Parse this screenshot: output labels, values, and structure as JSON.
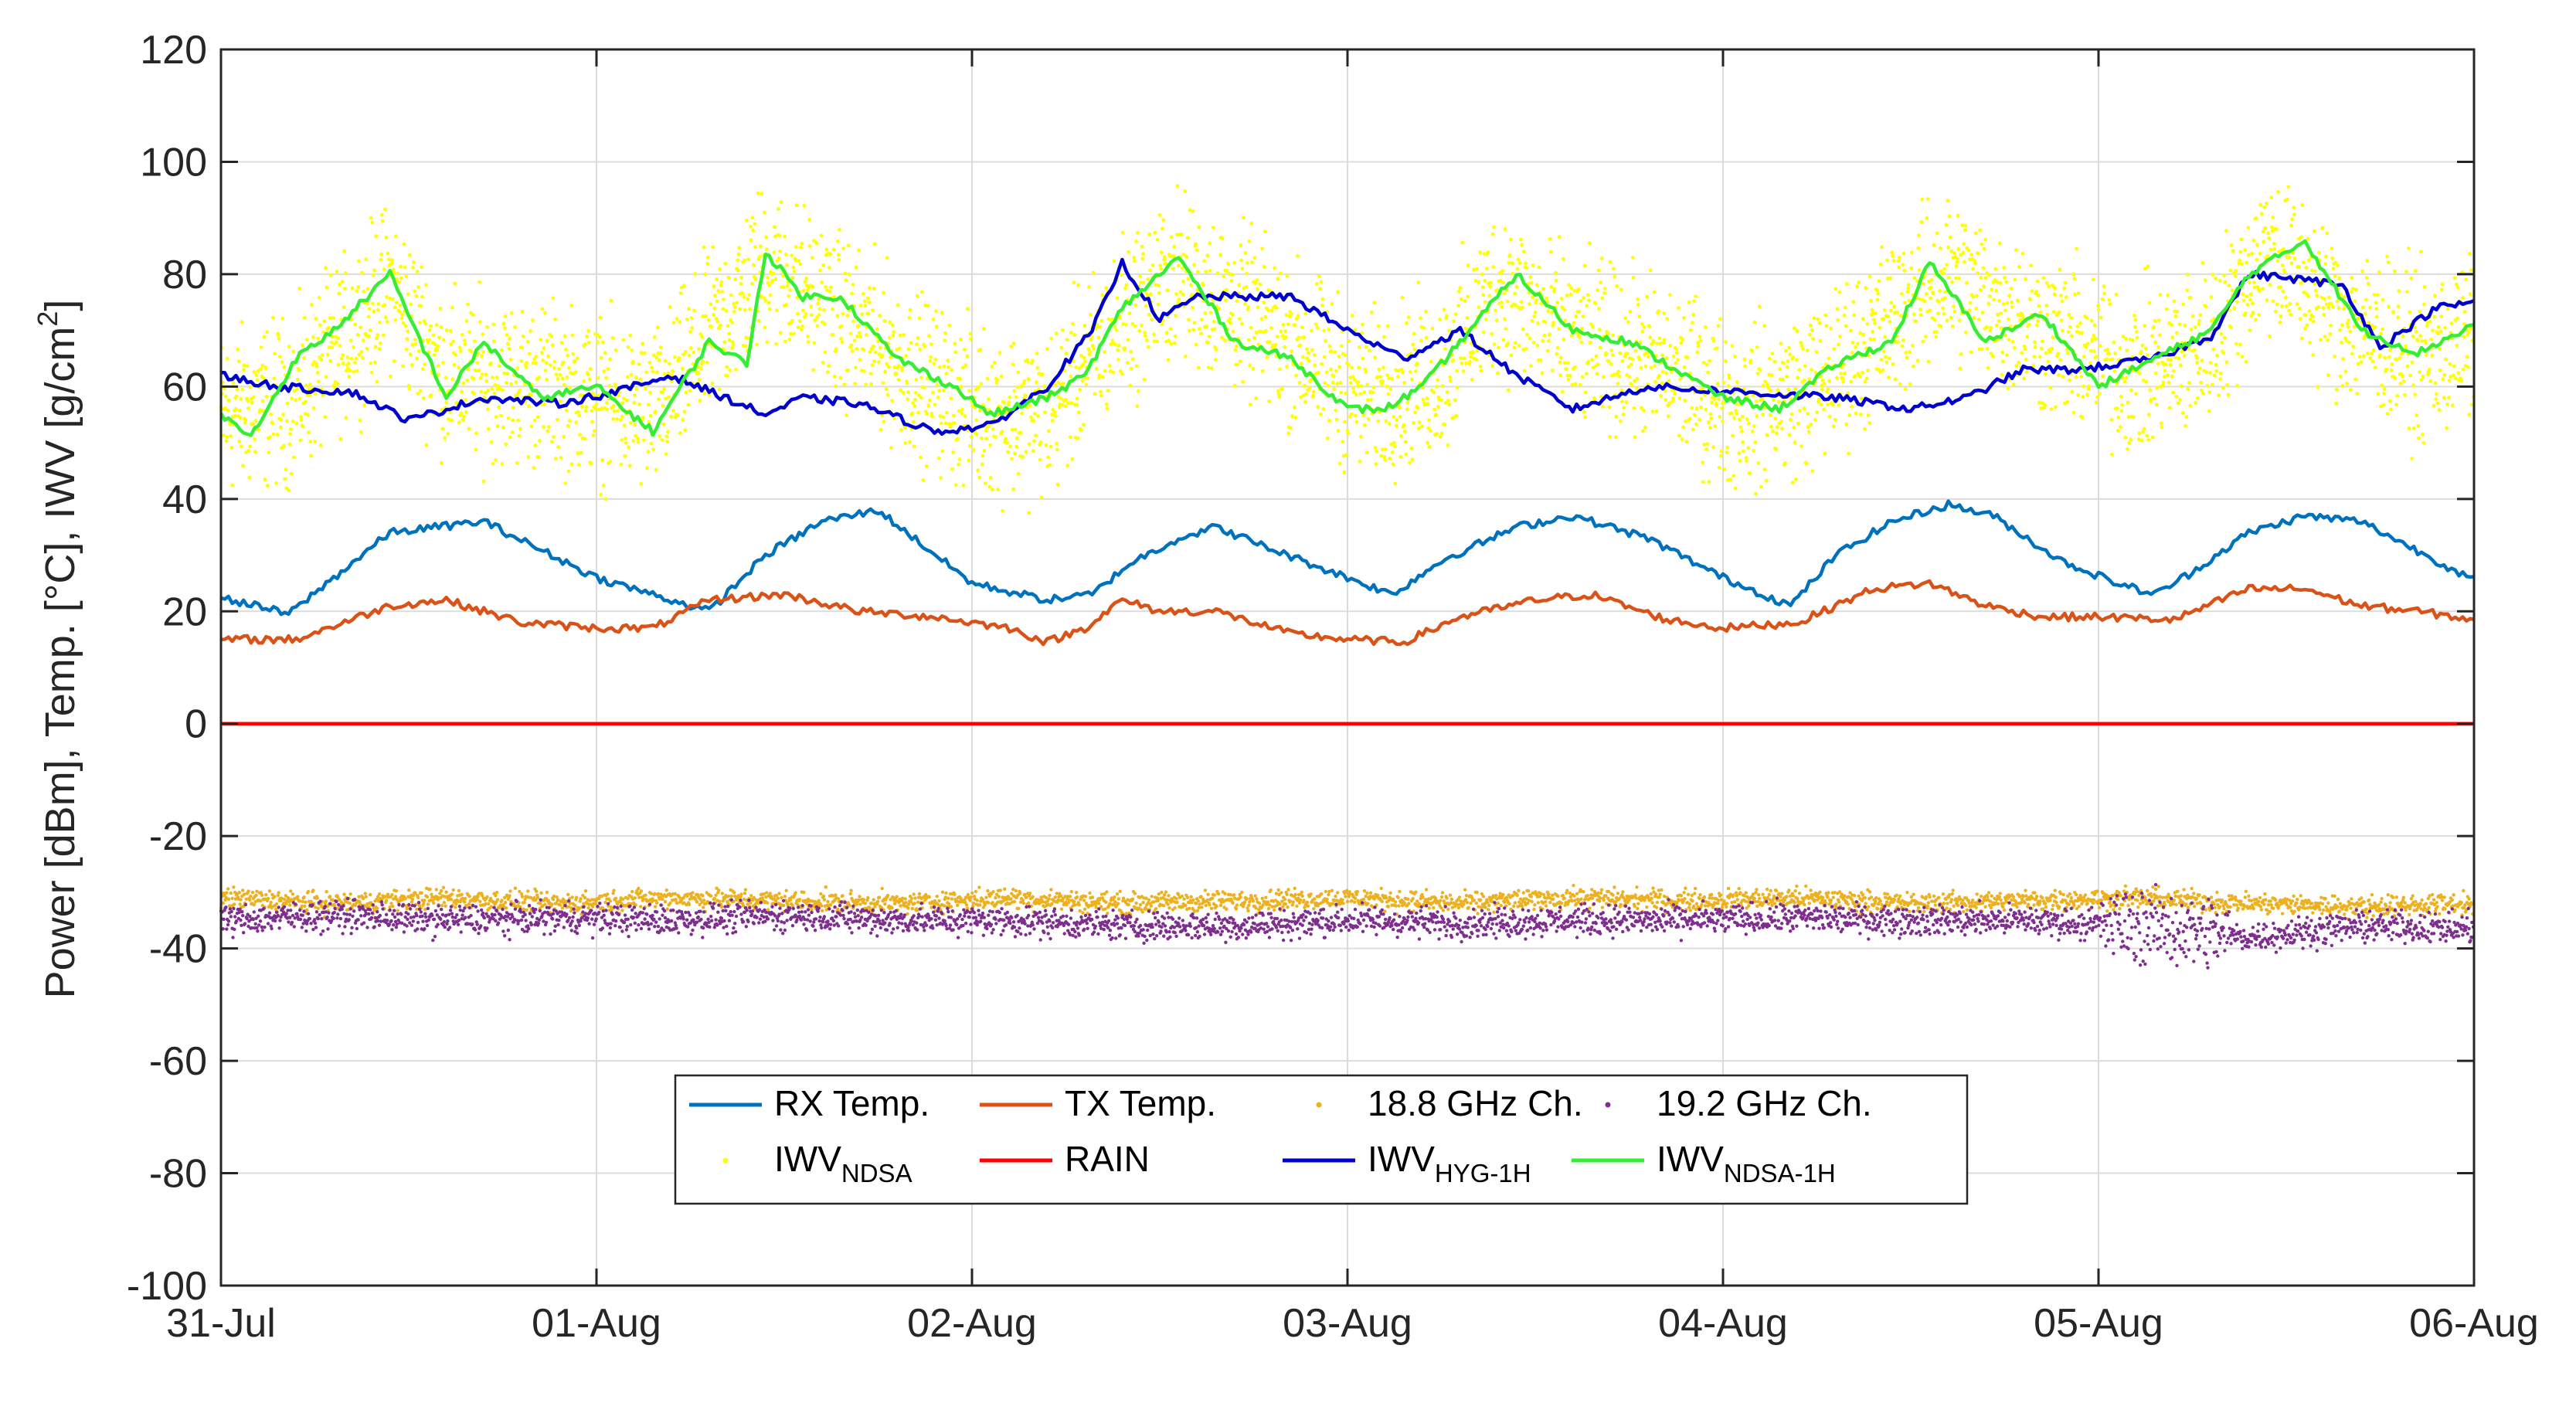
{
  "chart_data": {
    "type": "line",
    "title": "",
    "xlabel": "",
    "ylabel_parts": {
      "main": "Power [dBm], Temp. [°C], IWV [g/cm",
      "sup": "2",
      "end": "]"
    },
    "xlim": [
      0,
      6
    ],
    "ylim": [
      -100,
      120
    ],
    "y_ticks": [
      -100,
      -80,
      -60,
      -40,
      -20,
      0,
      20,
      40,
      60,
      80,
      100,
      120
    ],
    "x_ticks": [
      {
        "value": 0,
        "label": "31-Jul"
      },
      {
        "value": 1,
        "label": "01-Aug"
      },
      {
        "value": 2,
        "label": "02-Aug"
      },
      {
        "value": 3,
        "label": "03-Aug"
      },
      {
        "value": 4,
        "label": "04-Aug"
      },
      {
        "value": 5,
        "label": "05-Aug"
      },
      {
        "value": 6,
        "label": "06-Aug"
      }
    ],
    "grid": true,
    "legend_position": "bottom-center",
    "series": [
      {
        "name": "RX Temp.",
        "kind": "line",
        "color": "#0072BD",
        "x": [
          0,
          0.18,
          0.45,
          0.7,
          1.0,
          1.15,
          1.3,
          1.45,
          1.6,
          1.75,
          2.0,
          2.2,
          2.32,
          2.42,
          2.55,
          2.65,
          2.8,
          3.0,
          3.12,
          3.25,
          3.45,
          3.6,
          3.8,
          4.0,
          4.18,
          4.3,
          4.45,
          4.6,
          4.72,
          4.9,
          5.05,
          5.15,
          5.25,
          5.4,
          5.55,
          5.7,
          6.0
        ],
        "y": [
          22.5,
          19.5,
          34,
          36,
          26,
          23,
          20,
          30,
          36,
          38,
          25,
          22,
          23,
          28.5,
          33,
          35,
          31,
          26,
          23,
          29,
          35,
          37,
          33,
          26,
          21,
          30,
          36,
          39,
          37,
          29,
          25,
          23,
          27,
          34,
          37,
          36,
          25.5
        ]
      },
      {
        "name": "TX Temp.",
        "kind": "line",
        "color": "#D95319",
        "x": [
          0,
          0.2,
          0.45,
          0.6,
          0.8,
          1.0,
          1.15,
          1.3,
          1.5,
          1.7,
          1.9,
          2.1,
          2.2,
          2.3,
          2.4,
          2.5,
          2.65,
          2.85,
          3.0,
          3.15,
          3.3,
          3.5,
          3.65,
          3.85,
          4.0,
          4.2,
          4.4,
          4.55,
          4.7,
          4.85,
          5.0,
          5.2,
          5.4,
          5.55,
          5.7,
          5.85,
          6.0
        ],
        "y": [
          15,
          15,
          21,
          22,
          18,
          17,
          17,
          22,
          23,
          20,
          19,
          17,
          14.5,
          17,
          22,
          20,
          20,
          16,
          15,
          14.5,
          19,
          22,
          23,
          18.5,
          17,
          18,
          24,
          25,
          21,
          19,
          19,
          18.5,
          24,
          24,
          21,
          20,
          18.5
        ]
      },
      {
        "name": "18.8 GHz Ch.",
        "kind": "dots",
        "color": "#EDB120",
        "x": [
          0,
          0.3,
          0.6,
          0.9,
          1.2,
          1.5,
          1.8,
          2.1,
          2.4,
          2.7,
          3.0,
          3.3,
          3.6,
          3.9,
          4.2,
          4.5,
          4.8,
          5.1,
          5.4,
          5.7,
          6.0
        ],
        "y": [
          -31,
          -32,
          -31,
          -32,
          -31,
          -31.5,
          -32,
          -31,
          -32,
          -31.5,
          -31,
          -32,
          -31,
          -31.5,
          -31,
          -32,
          -31.5,
          -31,
          -32,
          -32.5,
          -32
        ]
      },
      {
        "name": "19.2 GHz Ch.",
        "kind": "dots",
        "color": "#7E2F8E",
        "x": [
          0,
          0.3,
          0.6,
          0.9,
          1.2,
          1.5,
          1.8,
          2.1,
          2.4,
          2.7,
          3.0,
          3.3,
          3.6,
          3.9,
          4.2,
          4.5,
          4.8,
          5.1,
          5.4,
          5.7,
          6.0
        ],
        "y": [
          -35,
          -34,
          -35,
          -34.5,
          -35,
          -34,
          -35,
          -35,
          -36,
          -36,
          -35,
          -35.5,
          -35,
          -35,
          -34.5,
          -35,
          -35,
          -36,
          -38,
          -36,
          -36.5
        ]
      },
      {
        "name": "IWV",
        "sub": "NDSA",
        "kind": "dots",
        "color": "#FFFF00",
        "x": [
          0,
          0.2,
          0.45,
          0.6,
          0.9,
          1.15,
          1.45,
          1.6,
          1.85,
          2.0,
          2.2,
          2.4,
          2.55,
          2.8,
          3.05,
          3.25,
          3.4,
          3.6,
          3.8,
          4.05,
          4.25,
          4.45,
          4.6,
          4.9,
          5.1,
          5.3,
          5.45,
          5.65,
          5.85,
          6.0
        ],
        "y": [
          55,
          58,
          78,
          62,
          60,
          55,
          82,
          75,
          62,
          56,
          55,
          72,
          80,
          70,
          58,
          62,
          78,
          68,
          65,
          56,
          60,
          72,
          80,
          68,
          62,
          68,
          85,
          72,
          65,
          68
        ]
      },
      {
        "name": "RAIN",
        "kind": "line",
        "color": "#FF0000",
        "x": [
          0,
          6
        ],
        "y": [
          0,
          0
        ]
      },
      {
        "name": "IWV",
        "sub": "HYG-1H",
        "kind": "line",
        "color": "#0000CC",
        "x": [
          0,
          0.15,
          0.35,
          0.5,
          0.7,
          0.9,
          1.05,
          1.2,
          1.45,
          1.55,
          1.7,
          1.9,
          2.05,
          2.2,
          2.32,
          2.4,
          2.5,
          2.6,
          2.85,
          3.0,
          3.15,
          3.3,
          3.45,
          3.6,
          3.8,
          4.05,
          4.3,
          4.5,
          4.65,
          4.8,
          4.95,
          5.15,
          5.3,
          5.4,
          5.55,
          5.65,
          5.75,
          5.9,
          6.0
        ],
        "y": [
          62,
          60,
          59,
          54,
          58,
          57,
          59,
          62,
          55,
          58,
          57,
          52,
          53,
          60,
          70,
          82,
          72,
          76,
          76,
          70,
          65,
          70,
          62,
          56,
          60,
          59,
          58,
          56,
          58,
          63,
          63,
          65,
          69,
          80,
          79,
          78,
          67,
          74,
          75
        ]
      },
      {
        "name": "IWV",
        "sub": "NDSA-1H",
        "kind": "line",
        "color": "#33EE33",
        "x": [
          0,
          0.08,
          0.2,
          0.3,
          0.45,
          0.6,
          0.7,
          0.85,
          1.0,
          1.15,
          1.3,
          1.4,
          1.45,
          1.55,
          1.65,
          1.8,
          1.95,
          2.05,
          2.2,
          2.3,
          2.4,
          2.55,
          2.7,
          2.85,
          3.0,
          3.1,
          3.2,
          3.35,
          3.45,
          3.6,
          3.75,
          3.85,
          4.0,
          4.15,
          4.3,
          4.45,
          4.55,
          4.7,
          4.85,
          5.0,
          5.15,
          5.3,
          5.4,
          5.55,
          5.7,
          5.85,
          6.0
        ],
        "y": [
          55,
          51,
          65,
          70,
          80,
          58,
          68,
          58,
          60,
          52,
          68,
          64,
          84,
          76,
          76,
          65,
          60,
          55,
          58,
          62,
          74,
          83,
          68,
          65,
          56,
          56,
          60,
          72,
          80,
          70,
          68,
          64,
          58,
          56,
          64,
          68,
          82,
          68,
          73,
          60,
          65,
          70,
          80,
          86,
          70,
          66,
          71
        ]
      }
    ],
    "legend_rows": [
      [
        "RX Temp.",
        "TX Temp.",
        "18.8 GHz Ch.",
        "19.2 GHz Ch."
      ],
      [
        "IWV_NDSA",
        "RAIN",
        "IWV_HYG-1H",
        "IWV_NDSA-1H"
      ]
    ]
  }
}
